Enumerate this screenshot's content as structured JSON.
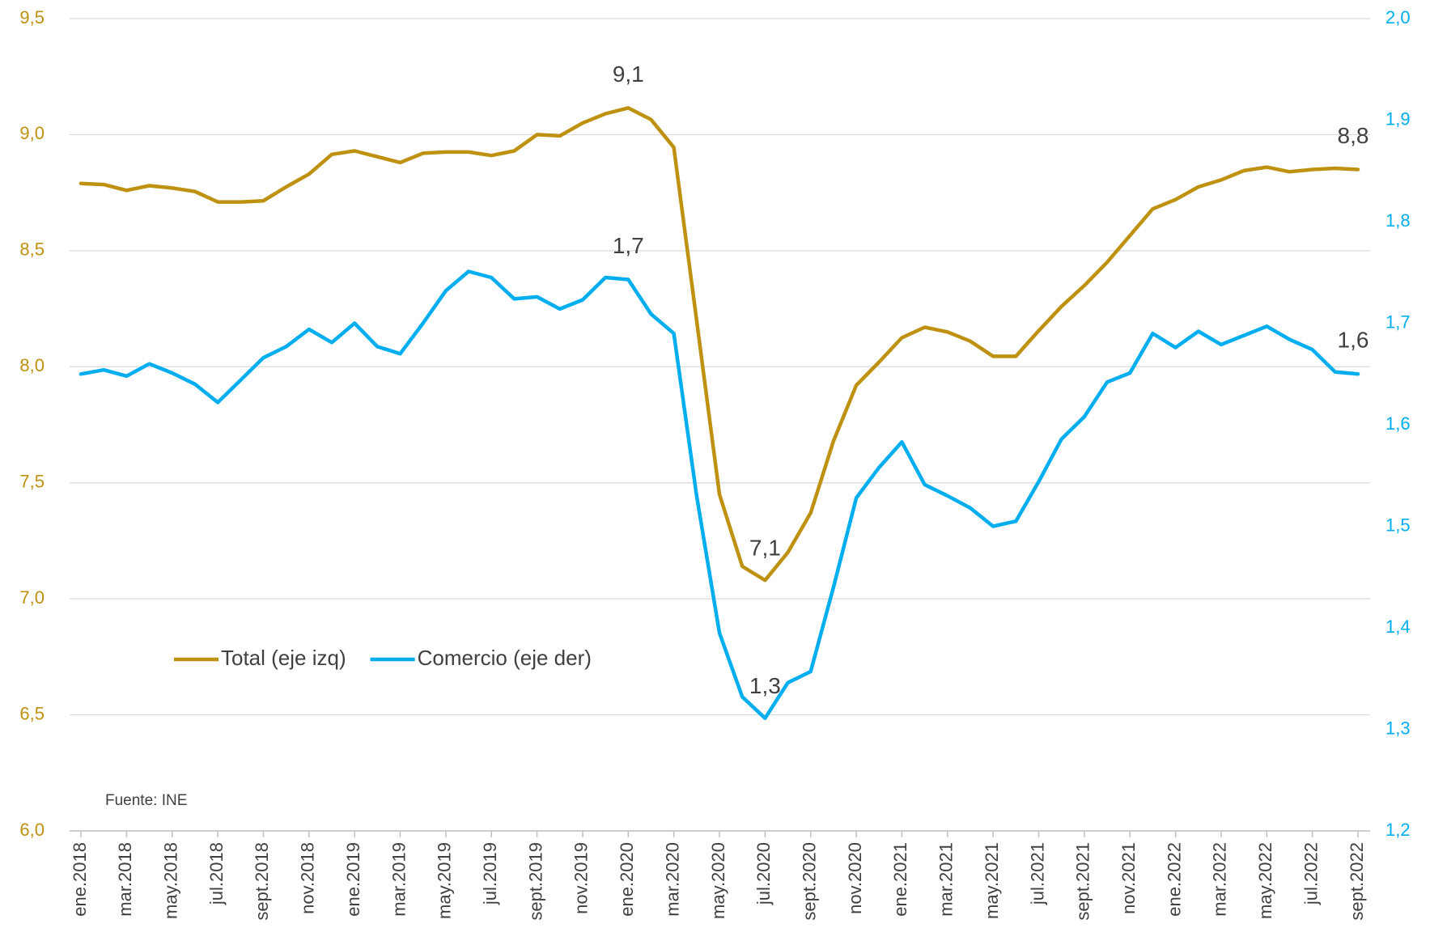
{
  "chart_data": {
    "type": "line",
    "categories": [
      "ene.2018",
      null,
      "mar.2018",
      null,
      "may.2018",
      null,
      "jul.2018",
      null,
      "sept.2018",
      null,
      "nov.2018",
      null,
      "ene.2019",
      null,
      "mar.2019",
      null,
      "may.2019",
      null,
      "jul.2019",
      null,
      "sept.2019",
      null,
      "nov.2019",
      null,
      "ene.2020",
      null,
      "mar.2020",
      null,
      "may.2020",
      null,
      "jul.2020",
      null,
      "sept.2020",
      null,
      "nov.2020",
      null,
      "ene.2021",
      null,
      "mar.2021",
      null,
      "may.2021",
      null,
      "jul.2021",
      null,
      "sept.2021",
      null,
      "nov.2021",
      null,
      "ene.2022",
      null,
      "mar.2022",
      null,
      "may.2022",
      null,
      "jul.2022",
      null,
      "sept.2022"
    ],
    "series": [
      {
        "name": "Total (eje izq)",
        "color": "#bf9110",
        "axis": "y",
        "values": [
          8.79,
          8.785,
          8.76,
          8.78,
          8.77,
          8.755,
          8.71,
          8.71,
          8.715,
          8.775,
          8.83,
          8.915,
          8.93,
          8.905,
          8.88,
          8.92,
          8.925,
          8.925,
          8.91,
          8.93,
          9.0,
          8.995,
          9.05,
          9.09,
          9.115,
          9.065,
          8.945,
          8.2,
          7.45,
          7.14,
          7.08,
          7.2,
          7.37,
          7.68,
          7.92,
          8.02,
          8.125,
          8.17,
          8.15,
          8.11,
          8.045,
          8.045,
          8.155,
          8.26,
          8.35,
          8.45,
          8.565,
          8.68,
          8.72,
          8.775,
          8.805,
          8.845,
          8.86,
          8.84,
          8.85,
          8.855,
          8.85
        ],
        "value_labels": [
          null,
          null,
          null,
          null,
          null,
          null,
          null,
          null,
          null,
          null,
          null,
          null,
          null,
          null,
          null,
          null,
          null,
          null,
          null,
          null,
          null,
          null,
          null,
          null,
          "9,1",
          null,
          null,
          null,
          null,
          null,
          "7,1",
          null,
          null,
          null,
          null,
          null,
          null,
          null,
          null,
          null,
          null,
          null,
          null,
          null,
          null,
          null,
          null,
          null,
          null,
          null,
          null,
          null,
          null,
          null,
          null,
          null,
          "8,8"
        ]
      },
      {
        "name": "Comercio (eje der)",
        "color": "#00aeef",
        "axis": "y2",
        "values": [
          1.65,
          1.654,
          1.648,
          1.66,
          1.651,
          1.64,
          1.622,
          1.644,
          1.666,
          1.677,
          1.694,
          1.681,
          1.7,
          1.677,
          1.67,
          1.7,
          1.732,
          1.751,
          1.745,
          1.724,
          1.726,
          1.714,
          1.723,
          1.745,
          1.743,
          1.709,
          1.69,
          1.53,
          1.395,
          1.332,
          1.311,
          1.346,
          1.357,
          1.44,
          1.528,
          1.558,
          1.583,
          1.541,
          1.53,
          1.518,
          1.5,
          1.505,
          1.544,
          1.586,
          1.608,
          1.642,
          1.651,
          1.69,
          1.676,
          1.692,
          1.679,
          1.688,
          1.697,
          1.684,
          1.674,
          1.652,
          1.65
        ],
        "value_labels": [
          null,
          null,
          null,
          null,
          null,
          null,
          null,
          null,
          null,
          null,
          null,
          null,
          null,
          null,
          null,
          null,
          null,
          null,
          null,
          null,
          null,
          null,
          null,
          null,
          "1,7",
          null,
          null,
          null,
          null,
          null,
          "1,3",
          null,
          null,
          null,
          null,
          null,
          null,
          null,
          null,
          null,
          null,
          null,
          null,
          null,
          null,
          null,
          null,
          null,
          null,
          null,
          null,
          null,
          null,
          null,
          null,
          null,
          "1,6"
        ]
      }
    ],
    "ylim": [
      6.0,
      9.5
    ],
    "yticks": [
      {
        "value": 6.0,
        "label": "6,0"
      },
      {
        "value": 6.5,
        "label": "6,5"
      },
      {
        "value": 7.0,
        "label": "7,0"
      },
      {
        "value": 7.5,
        "label": "7,5"
      },
      {
        "value": 8.0,
        "label": "8,0"
      },
      {
        "value": 8.5,
        "label": "8,5"
      },
      {
        "value": 9.0,
        "label": "9,0"
      },
      {
        "value": 9.5,
        "label": "9,5"
      }
    ],
    "y2lim": [
      1.2,
      2.0
    ],
    "y2ticks": [
      {
        "value": 1.2,
        "label": "1,2"
      },
      {
        "value": 1.3,
        "label": "1,3"
      },
      {
        "value": 1.4,
        "label": "1,4"
      },
      {
        "value": 1.5,
        "label": "1,5"
      },
      {
        "value": 1.6,
        "label": "1,6"
      },
      {
        "value": 1.7,
        "label": "1,7"
      },
      {
        "value": 1.8,
        "label": "1,8"
      },
      {
        "value": 1.9,
        "label": "1,9"
      },
      {
        "value": 2.0,
        "label": "2,0"
      }
    ],
    "grid": true,
    "legend": "lower left",
    "source": "Fuente: INE"
  }
}
